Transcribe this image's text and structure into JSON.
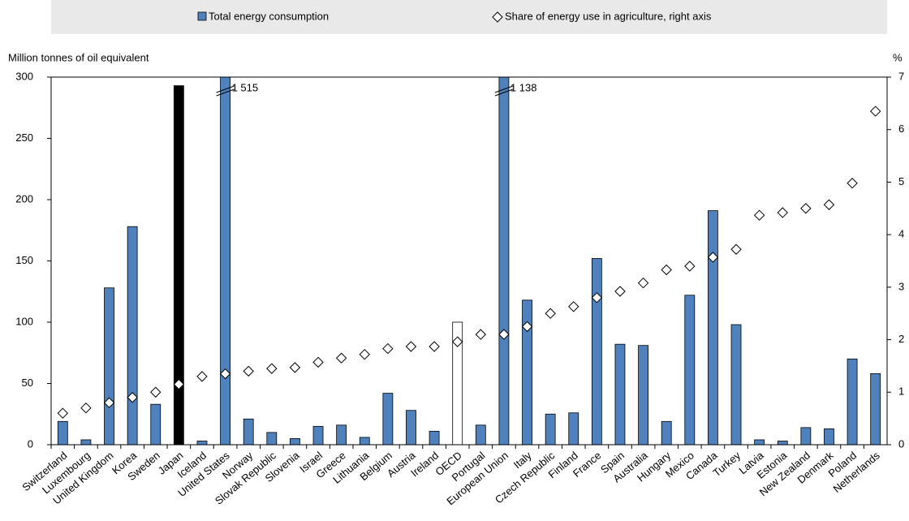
{
  "chart_data": {
    "type": "bar-dot",
    "y_label": "Million tonnes of oil equivalent",
    "y2_label": "%",
    "categories": [
      "Switzerland",
      "Luxembourg",
      "United Kingdom",
      "Korea",
      "Sweden",
      "Japan",
      "Iceland",
      "United States",
      "Norway",
      "Slovak Republic",
      "Slovenia",
      "Israel",
      "Greece",
      "Lithuania",
      "Belgium",
      "Austria",
      "Ireland",
      "OECD",
      "Portugal",
      "European Union",
      "Italy",
      "Czech Republic",
      "Finland",
      "France",
      "Spain",
      "Australia",
      "Hungary",
      "Mexico",
      "Canada",
      "Turkey",
      "Latvia",
      "Estonia",
      "New Zealand",
      "Denmark",
      "Poland",
      "Netherlands"
    ],
    "series": [
      {
        "name": "Total energy consumption",
        "color": "#4f81bd",
        "colors": [
          "#4f81bd",
          "#4f81bd",
          "#4f81bd",
          "#4f81bd",
          "#4f81bd",
          "#000000",
          "#4f81bd",
          "#4f81bd",
          "#4f81bd",
          "#4f81bd",
          "#4f81bd",
          "#4f81bd",
          "#4f81bd",
          "#4f81bd",
          "#4f81bd",
          "#4f81bd",
          "#4f81bd",
          "#ffffff",
          "#4f81bd",
          "#4f81bd",
          "#4f81bd",
          "#4f81bd",
          "#4f81bd",
          "#4f81bd",
          "#4f81bd",
          "#4f81bd",
          "#4f81bd",
          "#4f81bd",
          "#4f81bd",
          "#4f81bd",
          "#4f81bd",
          "#4f81bd",
          "#4f81bd",
          "#4f81bd",
          "#4f81bd",
          "#4f81bd"
        ],
        "values": [
          19,
          4,
          128,
          178,
          33,
          293,
          3,
          1515,
          21,
          10,
          5,
          15,
          16,
          6,
          42,
          28,
          11,
          100,
          16,
          1138,
          118,
          25,
          26,
          152,
          82,
          81,
          19,
          122,
          191,
          98,
          4,
          3,
          14,
          13,
          70,
          58
        ],
        "value_labels": [
          null,
          null,
          null,
          null,
          null,
          null,
          null,
          "1 515",
          null,
          null,
          null,
          null,
          null,
          null,
          null,
          null,
          null,
          null,
          null,
          "1 138",
          null,
          null,
          null,
          null,
          null,
          null,
          null,
          null,
          null,
          null,
          null,
          null,
          null,
          null,
          null,
          null
        ]
      },
      {
        "name": "Share of energy use in agriculture, right axis",
        "color": "#ffffff",
        "axis": "y2",
        "values": [
          0.6,
          0.7,
          0.8,
          0.9,
          1.0,
          1.15,
          1.3,
          1.35,
          1.4,
          1.45,
          1.47,
          1.57,
          1.65,
          1.72,
          1.83,
          1.87,
          1.87,
          1.96,
          2.1,
          2.1,
          2.25,
          2.5,
          2.63,
          2.8,
          2.92,
          3.08,
          3.33,
          3.4,
          3.57,
          3.72,
          4.37,
          4.42,
          4.5,
          4.57,
          4.98,
          6.35
        ]
      }
    ],
    "ylim": [
      0,
      300
    ],
    "yticks": [
      0,
      50,
      100,
      150,
      200,
      250,
      300
    ],
    "y2lim": [
      0,
      7
    ],
    "y2ticks": [
      0,
      1,
      2,
      3,
      4,
      5,
      6,
      7
    ]
  }
}
